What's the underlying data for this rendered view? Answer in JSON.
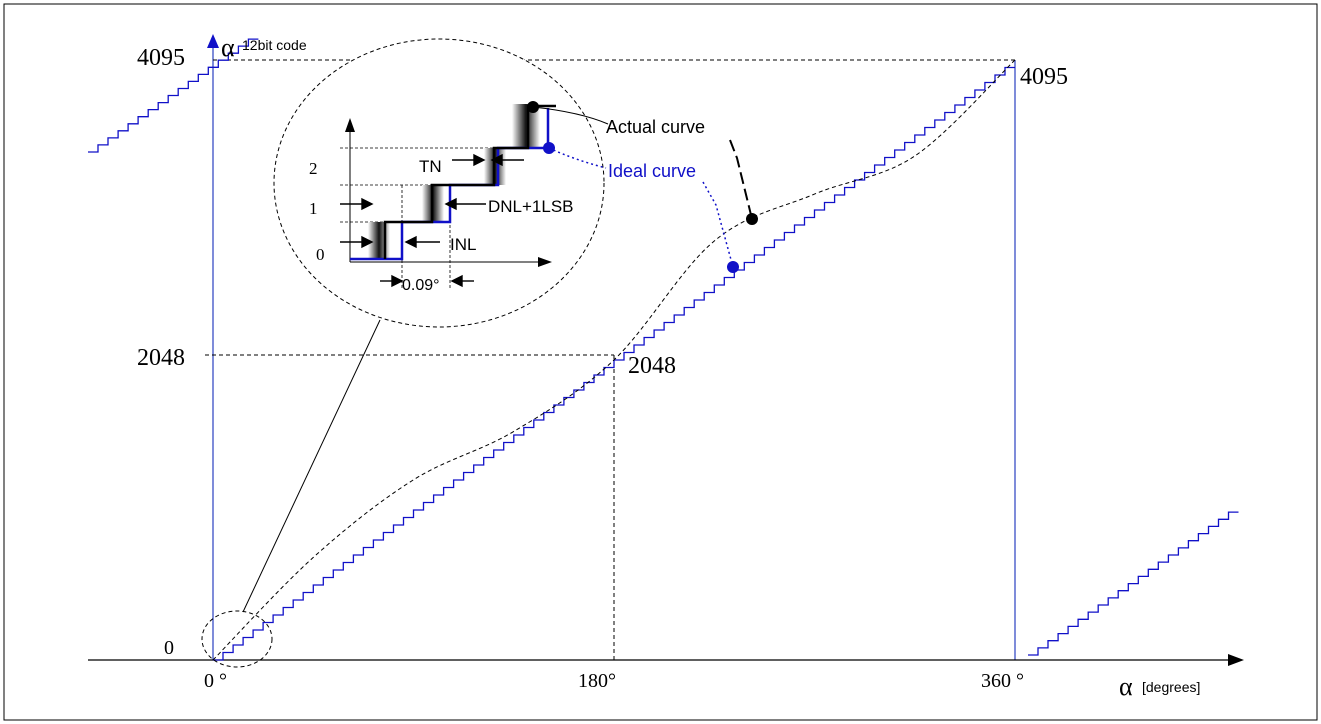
{
  "chart_data": {
    "type": "line",
    "title": "",
    "y_axis": {
      "symbol": "α",
      "unit_label": "12bit code",
      "ticks": [
        "0",
        "2048",
        "4095"
      ],
      "range": [
        0,
        4095
      ]
    },
    "x_axis": {
      "symbol": "α",
      "unit_label": "[degrees]",
      "ticks": [
        "0 °",
        "180°",
        "360 °"
      ],
      "range": [
        0,
        360
      ]
    },
    "point_labels": {
      "mid": "2048",
      "end": "4095"
    },
    "series": [
      {
        "name": "Ideal curve",
        "style": "staircase",
        "color": "#1010c8",
        "x": [
          0,
          180,
          360
        ],
        "y": [
          0,
          2048,
          4095
        ]
      },
      {
        "name": "Actual curve",
        "style": "dashed",
        "color": "#000000",
        "x": [
          0,
          45,
          90,
          135,
          180,
          225,
          270,
          315,
          360
        ],
        "y": [
          0,
          700,
          1230,
          1560,
          2048,
          2860,
          3180,
          3440,
          4095
        ]
      }
    ],
    "legend": {
      "actual": "Actual curve",
      "ideal": "Ideal curve"
    },
    "inset": {
      "y_ticks": [
        "0",
        "1",
        "2"
      ],
      "labels": {
        "tn": "TN",
        "dnl": "DNL+1LSB",
        "inl": "INL",
        "step": "0.09°"
      }
    }
  },
  "colors": {
    "ideal": "#1010c8",
    "frame_lines": "#2a3fc0",
    "actual": "#000000"
  }
}
